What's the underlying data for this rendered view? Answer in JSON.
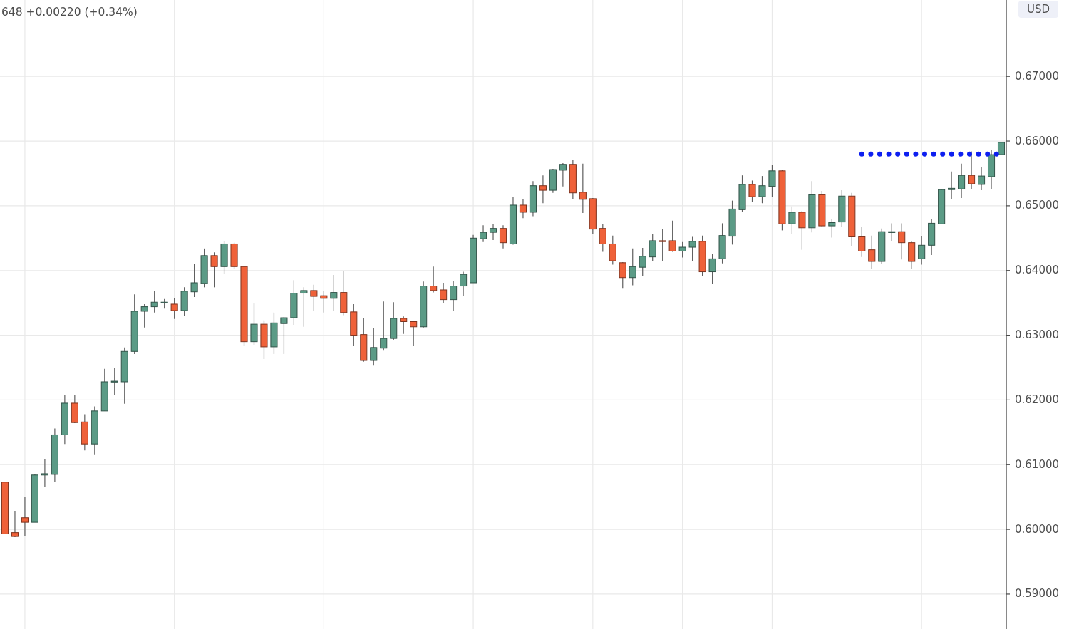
{
  "chart_data": {
    "type": "candlestick",
    "annotations": [
      "648 +0.00220 (+0.34%)"
    ],
    "ylabel": "USD",
    "categories": [
      null,
      null,
      null,
      null,
      null,
      null,
      null,
      null,
      null,
      null,
      null,
      null,
      null,
      null,
      null,
      null,
      null,
      null,
      null,
      null,
      null,
      null,
      null,
      null,
      null,
      null,
      null,
      null,
      null,
      null,
      null,
      null,
      null,
      null,
      null,
      null,
      null,
      null,
      null,
      null,
      null,
      null,
      null,
      null,
      null,
      null,
      null,
      null,
      null,
      null,
      null,
      null,
      null,
      null,
      null,
      null,
      null,
      null,
      null,
      null,
      null,
      null,
      null,
      null,
      null,
      null,
      null,
      null,
      null,
      null,
      null,
      null,
      null,
      null,
      null,
      null,
      null,
      null,
      null,
      null,
      null,
      null,
      null,
      null,
      null,
      null,
      null,
      null,
      null,
      null,
      null,
      null,
      null,
      null,
      null,
      null,
      null,
      null,
      null,
      null,
      null
    ],
    "ohlc": [
      [
        0.6073,
        0.6073,
        0.5993,
        0.5993
      ],
      [
        0.5995,
        0.6028,
        0.5988,
        0.5989
      ],
      [
        0.6018,
        0.605,
        0.599,
        0.6011
      ],
      [
        0.6011,
        0.6085,
        0.6011,
        0.6084
      ],
      [
        0.6084,
        0.6108,
        0.6065,
        0.6086
      ],
      [
        0.6085,
        0.6156,
        0.6074,
        0.6146
      ],
      [
        0.6146,
        0.6208,
        0.6132,
        0.6195
      ],
      [
        0.6195,
        0.6208,
        0.6164,
        0.6165
      ],
      [
        0.6166,
        0.6178,
        0.6122,
        0.6132
      ],
      [
        0.6132,
        0.619,
        0.6115,
        0.6183
      ],
      [
        0.6183,
        0.6248,
        0.6183,
        0.6228
      ],
      [
        0.6228,
        0.625,
        0.6207,
        0.6229
      ],
      [
        0.6228,
        0.6281,
        0.6194,
        0.6275
      ],
      [
        0.6275,
        0.6363,
        0.6271,
        0.6337
      ],
      [
        0.6337,
        0.6348,
        0.6312,
        0.6344
      ],
      [
        0.6344,
        0.6368,
        0.6335,
        0.6351
      ],
      [
        0.635,
        0.6356,
        0.6341,
        0.6351
      ],
      [
        0.6348,
        0.6358,
        0.6325,
        0.6338
      ],
      [
        0.6338,
        0.6374,
        0.633,
        0.6368
      ],
      [
        0.6367,
        0.641,
        0.6359,
        0.6381
      ],
      [
        0.638,
        0.6434,
        0.6374,
        0.6423
      ],
      [
        0.6423,
        0.6428,
        0.6374,
        0.6406
      ],
      [
        0.6406,
        0.6445,
        0.6394,
        0.6441
      ],
      [
        0.6441,
        0.6443,
        0.6402,
        0.6406
      ],
      [
        0.6406,
        0.6407,
        0.6283,
        0.629
      ],
      [
        0.629,
        0.6349,
        0.6285,
        0.6317
      ],
      [
        0.6317,
        0.6323,
        0.6263,
        0.6282
      ],
      [
        0.6282,
        0.6335,
        0.6271,
        0.6319
      ],
      [
        0.6318,
        0.6328,
        0.6271,
        0.6327
      ],
      [
        0.6327,
        0.6385,
        0.6316,
        0.6365
      ],
      [
        0.6365,
        0.6374,
        0.6313,
        0.6369
      ],
      [
        0.6369,
        0.6378,
        0.6337,
        0.636
      ],
      [
        0.6361,
        0.6368,
        0.6335,
        0.6357
      ],
      [
        0.6357,
        0.6393,
        0.6338,
        0.6366
      ],
      [
        0.6366,
        0.6399,
        0.6331,
        0.6335
      ],
      [
        0.6336,
        0.6348,
        0.6283,
        0.63
      ],
      [
        0.6301,
        0.6327,
        0.6259,
        0.6261
      ],
      [
        0.6261,
        0.6311,
        0.6253,
        0.6281
      ],
      [
        0.628,
        0.6352,
        0.6276,
        0.6295
      ],
      [
        0.6295,
        0.6351,
        0.6293,
        0.6326
      ],
      [
        0.6326,
        0.6329,
        0.6302,
        0.6321
      ],
      [
        0.6321,
        0.6322,
        0.6283,
        0.6313
      ],
      [
        0.6313,
        0.6383,
        0.6312,
        0.6376
      ],
      [
        0.6376,
        0.6406,
        0.6366,
        0.6369
      ],
      [
        0.637,
        0.6381,
        0.635,
        0.6355
      ],
      [
        0.6355,
        0.6384,
        0.6337,
        0.6376
      ],
      [
        0.6376,
        0.6398,
        0.636,
        0.6394
      ],
      [
        0.6381,
        0.6455,
        0.6381,
        0.645
      ],
      [
        0.6449,
        0.647,
        0.6444,
        0.6459
      ],
      [
        0.6459,
        0.6472,
        0.6447,
        0.6465
      ],
      [
        0.6465,
        0.647,
        0.6434,
        0.6443
      ],
      [
        0.6441,
        0.6514,
        0.644,
        0.6501
      ],
      [
        0.6501,
        0.6511,
        0.6481,
        0.649
      ],
      [
        0.649,
        0.6538,
        0.6484,
        0.6531
      ],
      [
        0.6531,
        0.6547,
        0.6504,
        0.6524
      ],
      [
        0.6524,
        0.6557,
        0.652,
        0.6556
      ],
      [
        0.6555,
        0.6566,
        0.653,
        0.6564
      ],
      [
        0.6564,
        0.6571,
        0.6511,
        0.652
      ],
      [
        0.6521,
        0.6565,
        0.6489,
        0.651
      ],
      [
        0.6511,
        0.6512,
        0.6456,
        0.6464
      ],
      [
        0.6465,
        0.6472,
        0.6429,
        0.6441
      ],
      [
        0.6441,
        0.6454,
        0.6409,
        0.6415
      ],
      [
        0.6412,
        0.6413,
        0.6372,
        0.6389
      ],
      [
        0.6389,
        0.6434,
        0.6377,
        0.6406
      ],
      [
        0.6405,
        0.6435,
        0.6392,
        0.6422
      ],
      [
        0.6421,
        0.6456,
        0.6415,
        0.6446
      ],
      [
        0.6446,
        0.6464,
        0.6415,
        0.6445
      ],
      [
        0.6446,
        0.6477,
        0.6429,
        0.643
      ],
      [
        0.643,
        0.6444,
        0.642,
        0.6436
      ],
      [
        0.6436,
        0.6452,
        0.6415,
        0.6445
      ],
      [
        0.6445,
        0.6454,
        0.6392,
        0.6398
      ],
      [
        0.6398,
        0.6425,
        0.6379,
        0.6418
      ],
      [
        0.6418,
        0.6473,
        0.6411,
        0.6454
      ],
      [
        0.6453,
        0.6508,
        0.644,
        0.6495
      ],
      [
        0.6494,
        0.6547,
        0.6491,
        0.6533
      ],
      [
        0.6533,
        0.6539,
        0.6506,
        0.6514
      ],
      [
        0.6514,
        0.6546,
        0.6504,
        0.6531
      ],
      [
        0.653,
        0.6563,
        0.6514,
        0.6554
      ],
      [
        0.6554,
        0.6556,
        0.6462,
        0.6472
      ],
      [
        0.6472,
        0.6499,
        0.6456,
        0.649
      ],
      [
        0.649,
        0.6492,
        0.6432,
        0.6466
      ],
      [
        0.6466,
        0.6538,
        0.6459,
        0.6517
      ],
      [
        0.6517,
        0.6523,
        0.6468,
        0.6469
      ],
      [
        0.6469,
        0.648,
        0.6451,
        0.6474
      ],
      [
        0.6475,
        0.6524,
        0.6468,
        0.6515
      ],
      [
        0.6515,
        0.652,
        0.6438,
        0.6452
      ],
      [
        0.6452,
        0.6468,
        0.6421,
        0.643
      ],
      [
        0.6432,
        0.6454,
        0.6402,
        0.6414
      ],
      [
        0.6414,
        0.6465,
        0.641,
        0.646
      ],
      [
        0.6459,
        0.6473,
        0.6446,
        0.646
      ],
      [
        0.646,
        0.6473,
        0.6417,
        0.6443
      ],
      [
        0.6443,
        0.6446,
        0.6402,
        0.6414
      ],
      [
        0.6418,
        0.6453,
        0.6409,
        0.6439
      ],
      [
        0.6439,
        0.648,
        0.6424,
        0.6473
      ],
      [
        0.6472,
        0.6526,
        0.6472,
        0.6525
      ],
      [
        0.6525,
        0.6553,
        0.651,
        0.6527
      ],
      [
        0.6526,
        0.6565,
        0.6512,
        0.6547
      ],
      [
        0.6547,
        0.6584,
        0.6526,
        0.6534
      ],
      [
        0.6533,
        0.656,
        0.6524,
        0.6546
      ],
      [
        0.6545,
        0.6586,
        0.6526,
        0.6579
      ],
      [
        0.6579,
        0.6598,
        0.6579,
        0.6598
      ]
    ],
    "colors": [
      "#ef6139",
      "#ef6139",
      "#ef6139",
      "#5b9b86",
      "#5b9b86",
      "#5b9b86",
      "#5b9b86",
      "#ef6139",
      "#ef6139",
      "#5b9b86",
      "#5b9b86",
      "#5b9b86",
      "#5b9b86",
      "#5b9b86",
      "#5b9b86",
      "#5b9b86",
      "#5b9b86",
      "#ef6139",
      "#5b9b86",
      "#5b9b86",
      "#5b9b86",
      "#ef6139",
      "#5b9b86",
      "#ef6139",
      "#ef6139",
      "#5b9b86",
      "#ef6139",
      "#5b9b86",
      "#5b9b86",
      "#5b9b86",
      "#5b9b86",
      "#ef6139",
      "#ef6139",
      "#5b9b86",
      "#ef6139",
      "#ef6139",
      "#ef6139",
      "#5b9b86",
      "#5b9b86",
      "#5b9b86",
      "#ef6139",
      "#ef6139",
      "#5b9b86",
      "#ef6139",
      "#ef6139",
      "#5b9b86",
      "#5b9b86",
      "#5b9b86",
      "#5b9b86",
      "#5b9b86",
      "#ef6139",
      "#5b9b86",
      "#ef6139",
      "#5b9b86",
      "#ef6139",
      "#5b9b86",
      "#5b9b86",
      "#ef6139",
      "#ef6139",
      "#ef6139",
      "#ef6139",
      "#ef6139",
      "#ef6139",
      "#5b9b86",
      "#5b9b86",
      "#5b9b86",
      "#ef6139",
      "#ef6139",
      "#5b9b86",
      "#5b9b86",
      "#ef6139",
      "#5b9b86",
      "#5b9b86",
      "#5b9b86",
      "#5b9b86",
      "#ef6139",
      "#5b9b86",
      "#5b9b86",
      "#ef6139",
      "#5b9b86",
      "#ef6139",
      "#5b9b86",
      "#ef6139",
      "#5b9b86",
      "#5b9b86",
      "#ef6139",
      "#ef6139",
      "#ef6139",
      "#5b9b86",
      "#5b9b86",
      "#ef6139",
      "#ef6139",
      "#5b9b86",
      "#5b9b86",
      "#5b9b86",
      "#5b9b86",
      "#5b9b86",
      "#ef6139",
      "#5b9b86",
      "#5b9b86",
      "#5b9b86"
    ],
    "series": [
      {
        "type": "line",
        "color": "#0d1ff0",
        "line_style": "dotted",
        "values": [
          null,
          null,
          null,
          null,
          null,
          null,
          null,
          null,
          null,
          null,
          null,
          null,
          null,
          null,
          null,
          null,
          null,
          null,
          null,
          null,
          null,
          null,
          null,
          null,
          null,
          null,
          null,
          null,
          null,
          null,
          null,
          null,
          null,
          null,
          null,
          null,
          null,
          null,
          null,
          null,
          null,
          null,
          null,
          null,
          null,
          null,
          null,
          null,
          null,
          null,
          null,
          null,
          null,
          null,
          null,
          null,
          null,
          null,
          null,
          null,
          null,
          null,
          null,
          null,
          null,
          null,
          null,
          null,
          null,
          null,
          null,
          null,
          null,
          null,
          null,
          null,
          null,
          null,
          null,
          null,
          null,
          null,
          null,
          null,
          null,
          null,
          0.658,
          0.658,
          0.658,
          0.658,
          0.658,
          0.658,
          0.658,
          0.658,
          0.658,
          0.658,
          0.658,
          0.658,
          0.658,
          0.658,
          0.658
        ]
      }
    ],
    "ylim": [
      0.5846,
      0.6818
    ],
    "yticks": [
      {
        "value": 0.59,
        "label": "0.59000"
      },
      {
        "value": 0.6,
        "label": "0.60000"
      },
      {
        "value": 0.61,
        "label": "0.61000"
      },
      {
        "value": 0.62,
        "label": "0.62000"
      },
      {
        "value": 0.63,
        "label": "0.63000"
      },
      {
        "value": 0.64,
        "label": "0.64000"
      },
      {
        "value": 0.65,
        "label": "0.65000"
      },
      {
        "value": 0.66,
        "label": "0.66000"
      },
      {
        "value": 0.67,
        "label": "0.67000"
      }
    ],
    "grid": true,
    "tick_labels": "y"
  }
}
